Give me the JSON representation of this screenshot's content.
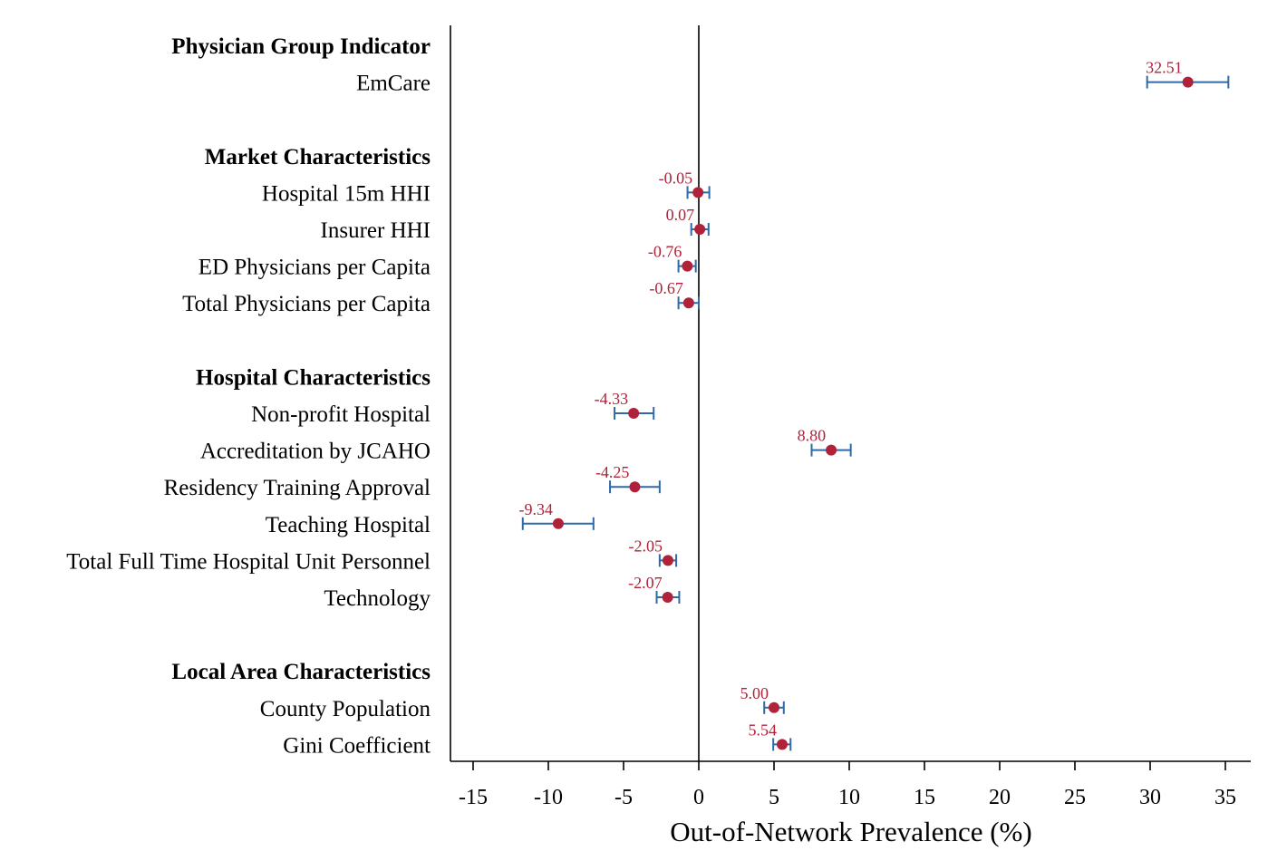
{
  "chart_data": {
    "type": "scatter",
    "xlabel": "Out-of-Network Prevalence (%)",
    "xlim": [
      -16.5,
      36.5
    ],
    "xticks": [
      -15,
      -10,
      -5,
      0,
      5,
      10,
      15,
      20,
      25,
      30,
      35
    ],
    "xtick_labels": [
      "-15",
      "-10",
      "-5",
      "0",
      "5",
      "10",
      "15",
      "20",
      "25",
      "30",
      "35"
    ],
    "reference_line_x": 0,
    "grid": false,
    "colors": {
      "point": "#b0213a",
      "error_bar": "#2e6aa8",
      "value_label": "#b0213a"
    },
    "rows": [
      {
        "kind": "header",
        "label": "Physician Group Indicator"
      },
      {
        "kind": "item",
        "label": "EmCare",
        "value": 32.51,
        "value_label": "32.51",
        "ci": [
          29.8,
          35.2
        ]
      },
      {
        "kind": "spacer"
      },
      {
        "kind": "header",
        "label": "Market Characteristics"
      },
      {
        "kind": "item",
        "label": "Hospital 15m HHI",
        "value": -0.05,
        "value_label": "-0.05",
        "ci": [
          -0.75,
          0.7
        ]
      },
      {
        "kind": "item",
        "label": "Insurer HHI",
        "value": 0.07,
        "value_label": "0.07",
        "ci": [
          -0.5,
          0.65
        ]
      },
      {
        "kind": "item",
        "label": "ED Physicians per Capita",
        "value": -0.76,
        "value_label": "-0.76",
        "ci": [
          -1.35,
          -0.2
        ]
      },
      {
        "kind": "item",
        "label": "Total Physicians per Capita",
        "value": -0.67,
        "value_label": "-0.67",
        "ci": [
          -1.35,
          0.0
        ]
      },
      {
        "kind": "spacer"
      },
      {
        "kind": "header",
        "label": "Hospital Characteristics"
      },
      {
        "kind": "item",
        "label": "Non-profit Hospital",
        "value": -4.33,
        "value_label": "-4.33",
        "ci": [
          -5.6,
          -3.0
        ]
      },
      {
        "kind": "item",
        "label": "Accreditation by JCAHO",
        "value": 8.8,
        "value_label": "8.80",
        "ci": [
          7.5,
          10.1
        ]
      },
      {
        "kind": "item",
        "label": "Residency Training Approval",
        "value": -4.25,
        "value_label": "-4.25",
        "ci": [
          -5.9,
          -2.6
        ]
      },
      {
        "kind": "item",
        "label": "Teaching Hospital",
        "value": -9.34,
        "value_label": "-9.34",
        "ci": [
          -11.7,
          -7.0
        ]
      },
      {
        "kind": "item",
        "label": "Total Full Time Hospital Unit Personnel",
        "value": -2.05,
        "value_label": "-2.05",
        "ci": [
          -2.6,
          -1.5
        ]
      },
      {
        "kind": "item",
        "label": "Technology",
        "value": -2.07,
        "value_label": "-2.07",
        "ci": [
          -2.8,
          -1.3
        ]
      },
      {
        "kind": "spacer"
      },
      {
        "kind": "header",
        "label": "Local Area Characteristics"
      },
      {
        "kind": "item",
        "label": "County Population",
        "value": 5.0,
        "value_label": "5.00",
        "ci": [
          4.35,
          5.65
        ]
      },
      {
        "kind": "item",
        "label": "Gini Coefficient",
        "value": 5.54,
        "value_label": "5.54",
        "ci": [
          4.95,
          6.1
        ]
      }
    ]
  }
}
